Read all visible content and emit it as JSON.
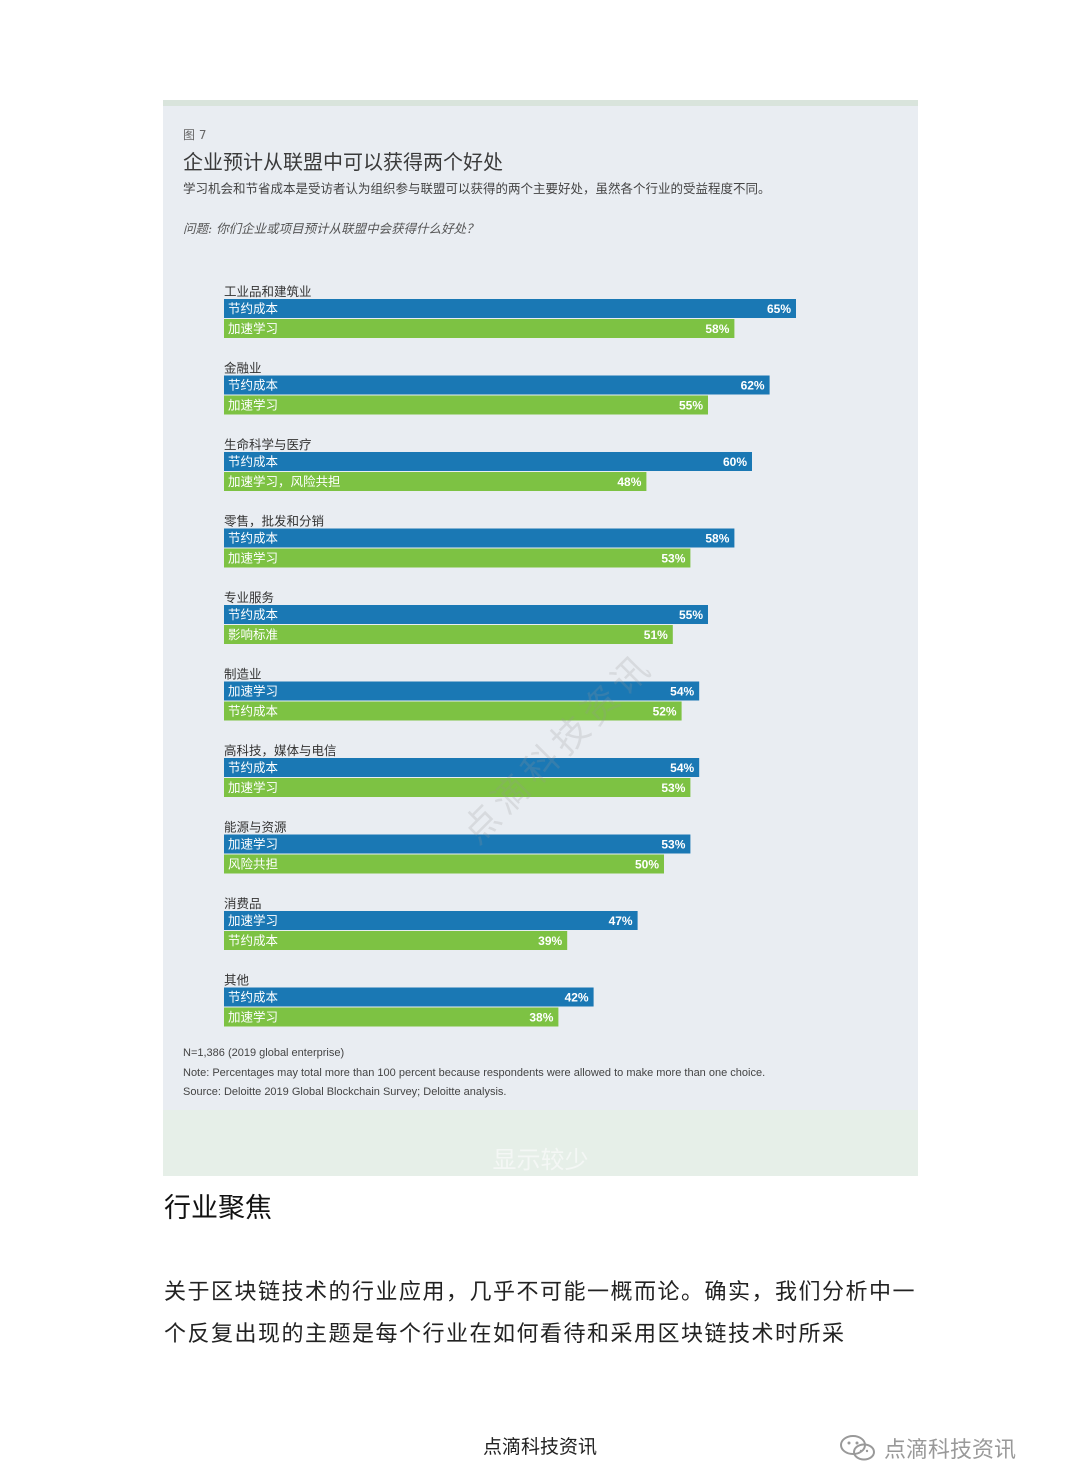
{
  "figure": {
    "label": "图 7",
    "title": "企业预计从联盟中可以获得两个好处",
    "subtitle": "学习机会和节省成本是受访者认为组织参与联盟可以获得的两个主要好处，虽然各个行业的受益程度不同。",
    "question": "问题: 你们企业或项目预计从联盟中会获得什么好处？",
    "notes": [
      "N=1,386 (2019 global enterprise)",
      "Note: Percentages may total more than 100 percent because respondents were allowed to make more than one choice.",
      "Source: Deloitte 2019 Global Blockchain Survey; Deloitte analysis."
    ],
    "watermark": "点滴科技资讯"
  },
  "chart_data": {
    "type": "bar",
    "orientation": "horizontal",
    "unit": "%",
    "colors": {
      "first": "#1a78b4",
      "second": "#7dc243"
    },
    "groups": [
      {
        "category": "工业品和建筑业",
        "bars": [
          {
            "label": "节约成本",
            "value": 65
          },
          {
            "label": "加速学习",
            "value": 58
          }
        ]
      },
      {
        "category": "金融业",
        "bars": [
          {
            "label": "节约成本",
            "value": 62
          },
          {
            "label": "加速学习",
            "value": 55
          }
        ]
      },
      {
        "category": "生命科学与医疗",
        "bars": [
          {
            "label": "节约成本",
            "value": 60
          },
          {
            "label": "加速学习，风险共担",
            "value": 48
          }
        ]
      },
      {
        "category": "零售，批发和分销",
        "bars": [
          {
            "label": "节约成本",
            "value": 58
          },
          {
            "label": "加速学习",
            "value": 53
          }
        ]
      },
      {
        "category": "专业服务",
        "bars": [
          {
            "label": "节约成本",
            "value": 55
          },
          {
            "label": "影响标准",
            "value": 51
          }
        ]
      },
      {
        "category": "制造业",
        "bars": [
          {
            "label": "加速学习",
            "value": 54
          },
          {
            "label": "节约成本",
            "value": 52
          }
        ]
      },
      {
        "category": "高科技，媒体与电信",
        "bars": [
          {
            "label": "节约成本",
            "value": 54
          },
          {
            "label": "加速学习",
            "value": 53
          }
        ]
      },
      {
        "category": "能源与资源",
        "bars": [
          {
            "label": "加速学习",
            "value": 53
          },
          {
            "label": "风险共担",
            "value": 50
          }
        ]
      },
      {
        "category": "消费品",
        "bars": [
          {
            "label": "加速学习",
            "value": 47
          },
          {
            "label": "节约成本",
            "value": 39
          }
        ]
      },
      {
        "category": "其他",
        "bars": [
          {
            "label": "节约成本",
            "value": 42
          },
          {
            "label": "加速学习",
            "value": 38
          }
        ]
      }
    ]
  },
  "show_less": "显示较少",
  "article": {
    "heading": "行业聚焦",
    "paragraph": "关于区块链技术的行业应用，几乎不可能一概而论。确实，我们分析中一个反复出现的主题是每个行业在如何看待和采用区块链技术时所采"
  },
  "footer": {
    "center": "点滴科技资讯",
    "brand": "点滴科技资讯",
    "brand_icon": "wechat-icon"
  }
}
